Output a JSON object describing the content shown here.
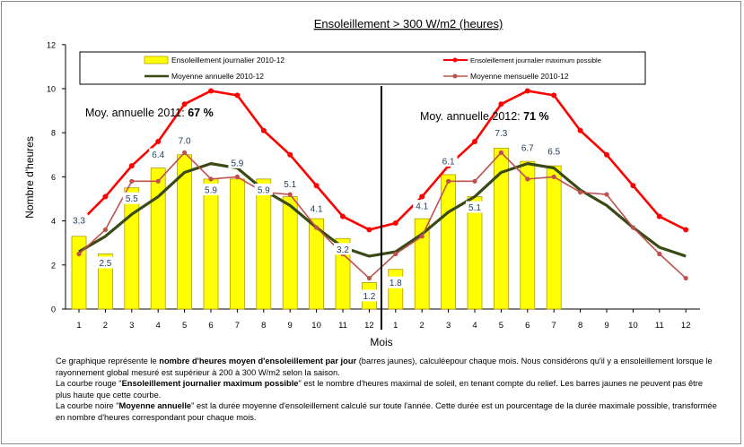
{
  "chart_data": {
    "type": "bar",
    "title": "Ensoleillement > 300 W/m2 (heures)",
    "ylabel": "Nombre d'heures",
    "xlabel": "Mois",
    "ylim": [
      0,
      12
    ],
    "yticks": [
      "0",
      "2",
      "4",
      "6",
      "8",
      "10",
      "12"
    ],
    "categories": [
      "1",
      "2",
      "3",
      "4",
      "5",
      "6",
      "7",
      "8",
      "9",
      "10",
      "11",
      "12",
      "1",
      "2",
      "3",
      "4",
      "5",
      "6",
      "7",
      "8",
      "9",
      "10",
      "11",
      "12"
    ],
    "legend": {
      "bar": "Ensoleillement journalier  2010-12",
      "max": "Ensoleillement journalier maximum possible",
      "annual": "Moyenne annuelle  2010-12",
      "monthly": "Moyenne mensuelle  2010-12"
    },
    "series": [
      {
        "name": "Ensoleillement journalier  2010-12",
        "kind": "bar",
        "color": "#ffff00",
        "values": [
          3.3,
          2.5,
          5.5,
          6.4,
          7.0,
          5.9,
          5.9,
          5.9,
          5.1,
          4.1,
          3.2,
          1.2,
          1.8,
          4.1,
          6.1,
          5.1,
          7.3,
          6.7,
          6.5,
          null,
          null,
          null,
          null,
          null
        ],
        "labels": [
          "3.3",
          "2.5",
          "5.5",
          "6.4",
          "7.0",
          "5.9",
          "5.9",
          "5.9",
          "5.1",
          "4.1",
          "3.2",
          "1.2",
          "1.8",
          "4.1",
          "6.1",
          "5.1",
          "7.3",
          "6.7",
          "6.5",
          "",
          "",
          "",
          "",
          ""
        ]
      },
      {
        "name": "Ensoleillement journalier maximum possible",
        "kind": "line",
        "color": "#ff0000",
        "values": [
          3.9,
          5.1,
          6.5,
          7.6,
          9.3,
          9.9,
          9.7,
          8.1,
          7.0,
          5.6,
          4.2,
          3.6,
          3.9,
          5.1,
          6.5,
          7.6,
          9.3,
          9.9,
          9.7,
          8.1,
          7.0,
          5.6,
          4.2,
          3.6
        ]
      },
      {
        "name": "Moyenne annuelle  2010-12",
        "kind": "line",
        "color": "#3a4a14",
        "values": [
          2.6,
          3.3,
          4.3,
          5.1,
          6.2,
          6.6,
          6.4,
          5.4,
          4.7,
          3.7,
          2.8,
          2.4,
          2.6,
          3.4,
          4.4,
          5.1,
          6.2,
          6.6,
          6.4,
          5.4,
          4.7,
          3.7,
          2.8,
          2.4
        ]
      },
      {
        "name": "Moyenne mensuelle  2010-12",
        "kind": "line",
        "color": "#c0504d",
        "values": [
          2.5,
          3.6,
          5.8,
          5.8,
          7.1,
          5.9,
          6.0,
          5.3,
          5.2,
          3.7,
          2.5,
          1.4,
          2.5,
          3.3,
          5.8,
          5.8,
          7.1,
          5.9,
          6.0,
          5.3,
          5.2,
          3.7,
          2.5,
          1.4
        ]
      }
    ],
    "annotations": [
      {
        "prefix": "Moy. annuelle 2011: ",
        "value": "67 %"
      },
      {
        "prefix": "Moy. annuelle 2012: ",
        "value": "71 %"
      }
    ],
    "grid": false,
    "legend_placement": "top"
  },
  "caption": [
    [
      {
        "t": "Ce graphique représente le ",
        "b": false
      },
      {
        "t": "nombre d'heures moyen d'ensoleillement par jour",
        "b": true
      },
      {
        "t": " (barres jaunes), calculéepour chaque mois. Nous considérons qu'il y a ensoleillement lorsque le rayonnement global mesuré est supérieur à 200 à 300 W/m2 selon la saison.",
        "b": false
      }
    ],
    [
      {
        "t": "La courbe rouge \"",
        "b": false
      },
      {
        "t": "Ensoleillement journalier  maximum possible",
        "b": true
      },
      {
        "t": "\" est le  nombre d'heures maximal de soleil, en tenant compte du relief. Les barres jaunes ne peuvent pas être plus haute que cette courbe.",
        "b": false
      }
    ],
    [
      {
        "t": "La courbe noire \"",
        "b": false
      },
      {
        "t": "Moyenne annuelle",
        "b": true
      },
      {
        "t": "\"  est la durée moyenne d'ensoleillement calculé sur toute l'année. Cette durée est un pourcentage de la durée maximale possible, transformée en nombre d'heures correspondant pour chaque mois.",
        "b": false
      }
    ]
  ]
}
